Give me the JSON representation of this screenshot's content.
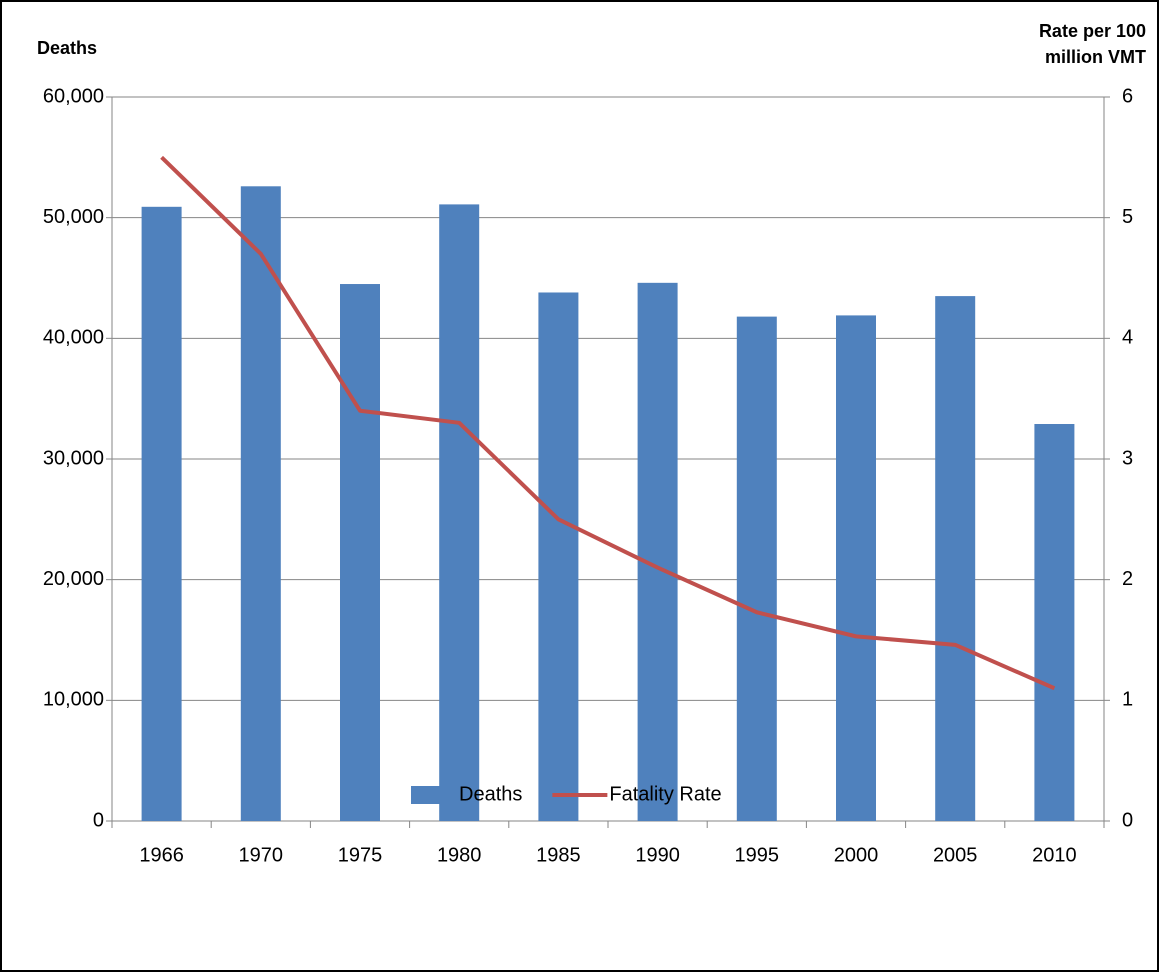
{
  "chart_data": {
    "type": "bar_line",
    "y_axis_title": "Deaths",
    "y2_axis_title": "Rate per 100 million VMT",
    "categories": [
      "1966",
      "1970",
      "1975",
      "1980",
      "1985",
      "1990",
      "1995",
      "2000",
      "2005",
      "2010"
    ],
    "series": [
      {
        "name": "Deaths",
        "type": "bar",
        "color": "#4f81bd",
        "values": [
          50900,
          52600,
          44500,
          51100,
          43800,
          44600,
          41800,
          41900,
          43500,
          32900
        ]
      },
      {
        "name": "Fatality Rate",
        "type": "line",
        "axis": "y2",
        "color": "#c0504d",
        "values": [
          5.5,
          4.7,
          3.4,
          3.3,
          2.5,
          2.1,
          1.73,
          1.53,
          1.46,
          1.1
        ]
      }
    ],
    "ylim": [
      0,
      60000
    ],
    "yticks": [
      0,
      {
        "value": 10000,
        "label": "10,000"
      },
      {
        "value": 20000,
        "label": "20,000"
      },
      {
        "value": 30000,
        "label": "30,000"
      },
      {
        "value": 40000,
        "label": "40,000"
      },
      {
        "value": 50000,
        "label": "50,000"
      },
      {
        "value": 60000,
        "label": "60,000"
      }
    ],
    "y2lim": [
      0,
      6
    ],
    "y2ticks": [
      0,
      1,
      2,
      3,
      4,
      5,
      6
    ],
    "grid": true,
    "legend": "bottom"
  }
}
